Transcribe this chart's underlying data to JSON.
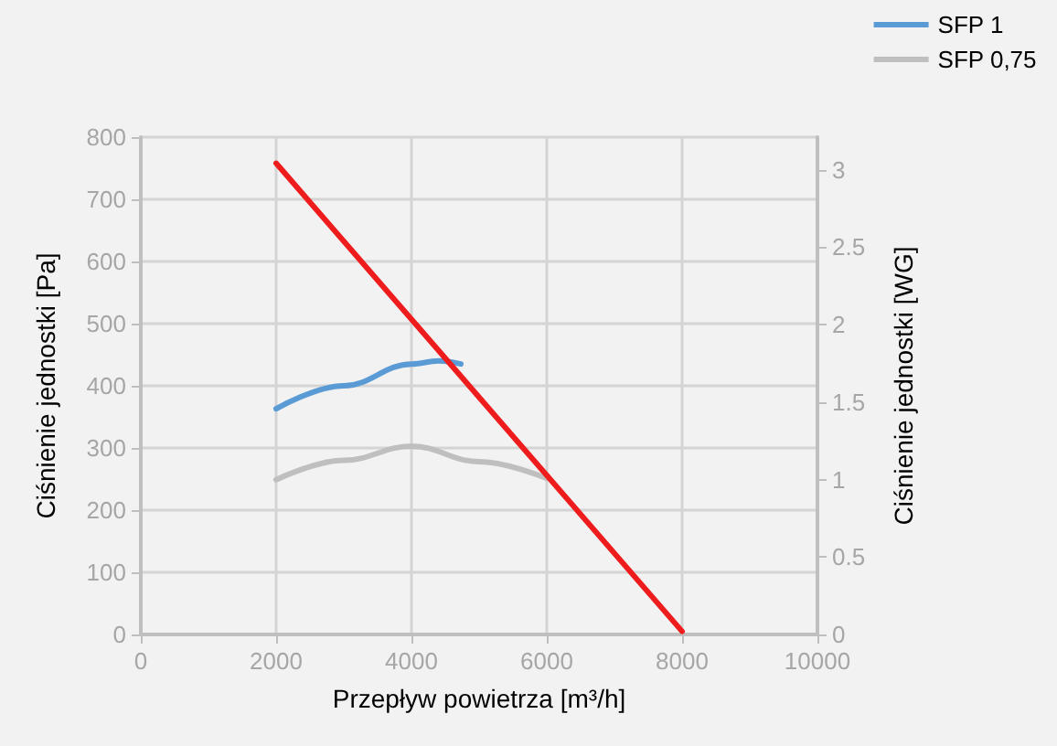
{
  "chart_data": {
    "type": "line",
    "xlabel": "Przepływ powietrza [m³/h]",
    "ylabel": "Ciśnienie jednostki [Pa]",
    "y2label": "Ciśnienie jednostki [WG]",
    "xlim": [
      0,
      10000
    ],
    "xticks": [
      0,
      2000,
      4000,
      6000,
      8000,
      10000
    ],
    "ylim": [
      0,
      800
    ],
    "yticks": [
      0,
      100,
      200,
      300,
      400,
      500,
      600,
      700,
      800
    ],
    "y2lim": [
      0,
      3.21
    ],
    "y2ticks": [
      0,
      0.5,
      1,
      1.5,
      2,
      2.5,
      3
    ],
    "grid": true,
    "legend": "top right",
    "marker": "none",
    "series": [
      {
        "name": "SFP 1",
        "color": "#5b9bd5",
        "x": [
          2000,
          3000,
          4000,
          4400,
          4730
        ],
        "values": [
          363,
          400,
          435,
          440,
          435
        ]
      },
      {
        "name": "SFP 0,75",
        "color": "#bfbfbf",
        "x": [
          2000,
          3000,
          4000,
          5000,
          6000
        ],
        "values": [
          249,
          280,
          303,
          278,
          251
        ]
      },
      {
        "color": "#ee1c1c",
        "x": [
          2000,
          8000
        ],
        "values": [
          758,
          5
        ]
      }
    ]
  }
}
